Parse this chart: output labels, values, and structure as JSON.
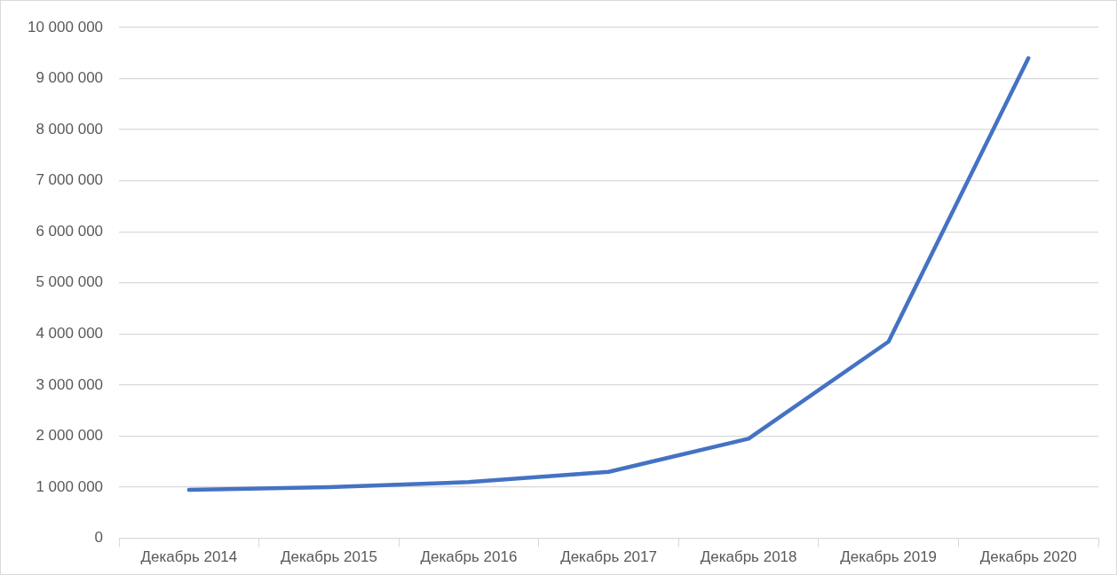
{
  "chart_data": {
    "type": "line",
    "categories": [
      "Декабрь 2014",
      "Декабрь 2015",
      "Декабрь 2016",
      "Декабрь 2017",
      "Декабрь 2018",
      "Декабрь 2019",
      "Декабрь 2020"
    ],
    "series": [
      {
        "color": "#4472c4",
        "values": [
          950000,
          1000000,
          1100000,
          1300000,
          1950000,
          3850000,
          9400000
        ]
      }
    ],
    "ylim": [
      0,
      10000000
    ],
    "yticks": [
      {
        "value": 0,
        "label": "0"
      },
      {
        "value": 1000000,
        "label": "1 000 000"
      },
      {
        "value": 2000000,
        "label": "2 000 000"
      },
      {
        "value": 3000000,
        "label": "3 000 000"
      },
      {
        "value": 4000000,
        "label": "4 000 000"
      },
      {
        "value": 5000000,
        "label": "5 000 000"
      },
      {
        "value": 6000000,
        "label": "6 000 000"
      },
      {
        "value": 7000000,
        "label": "7 000 000"
      },
      {
        "value": 8000000,
        "label": "8 000 000"
      },
      {
        "value": 9000000,
        "label": "9 000 000"
      },
      {
        "value": 10000000,
        "label": "10 000 000"
      }
    ],
    "grid": "y",
    "legend": false,
    "marker": "none",
    "line_style": "solid"
  }
}
